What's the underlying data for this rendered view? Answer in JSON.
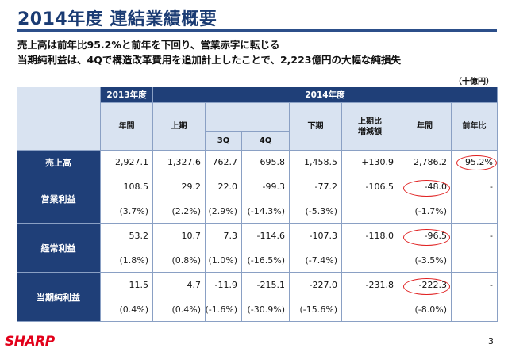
{
  "title": "2014年度 連結業績概要",
  "subtitle1": "売上高は前年比95.2%と前年を下回り、営業赤字に転じる",
  "subtitle2": "当期純利益は、4Qで構造改革費用を追加計上したことで、2,223億円の大幅な純損失",
  "unit": "（十億円）",
  "headers": {
    "fy2013": "2013年度",
    "fy2014": "2014年度",
    "annual": "年間",
    "first_half": "上期",
    "q3": "3Q",
    "q4": "4Q",
    "second_half": "下期",
    "vs_first_half": "上期比\n増減額",
    "annual2014": "年間",
    "yoy": "前年比"
  },
  "rows": {
    "sales": {
      "label": "売上高",
      "v": [
        "2,927.1",
        "1,327.6",
        "762.7",
        "695.8",
        "1,458.5",
        "+130.9",
        "2,786.2",
        "95.2%"
      ]
    },
    "operating": {
      "label": "営業利益",
      "v": [
        "108.5",
        "29.2",
        "22.0",
        "-99.3",
        "-77.2",
        "-106.5",
        "-48.0",
        "-"
      ],
      "p": [
        "(3.7%)",
        "(2.2%)",
        "(2.9%)",
        "(-14.3%)",
        "(-5.3%)",
        "",
        "(-1.7%)",
        ""
      ]
    },
    "ordinary": {
      "label": "経常利益",
      "v": [
        "53.2",
        "10.7",
        "7.3",
        "-114.6",
        "-107.3",
        "-118.0",
        "-96.5",
        "-"
      ],
      "p": [
        "(1.8%)",
        "(0.8%)",
        "(1.0%)",
        "(-16.5%)",
        "(-7.4%)",
        "",
        "(-3.5%)",
        ""
      ]
    },
    "net": {
      "label": "当期純利益",
      "v": [
        "11.5",
        "4.7",
        "-11.9",
        "-215.1",
        "-227.0",
        "-231.8",
        "-222.3",
        "-"
      ],
      "p": [
        "(0.4%)",
        "(0.4%)",
        "(-1.6%)",
        "(-30.9%)",
        "(-15.6%)",
        "",
        "(-8.0%)",
        ""
      ]
    }
  },
  "footer": {
    "logo": "SHARP",
    "page": "3"
  },
  "colors": {
    "header_bg": "#1f3f78",
    "subheader_bg": "#d9e3f1",
    "highlight": "#e02020",
    "logo": "#e2001a"
  }
}
